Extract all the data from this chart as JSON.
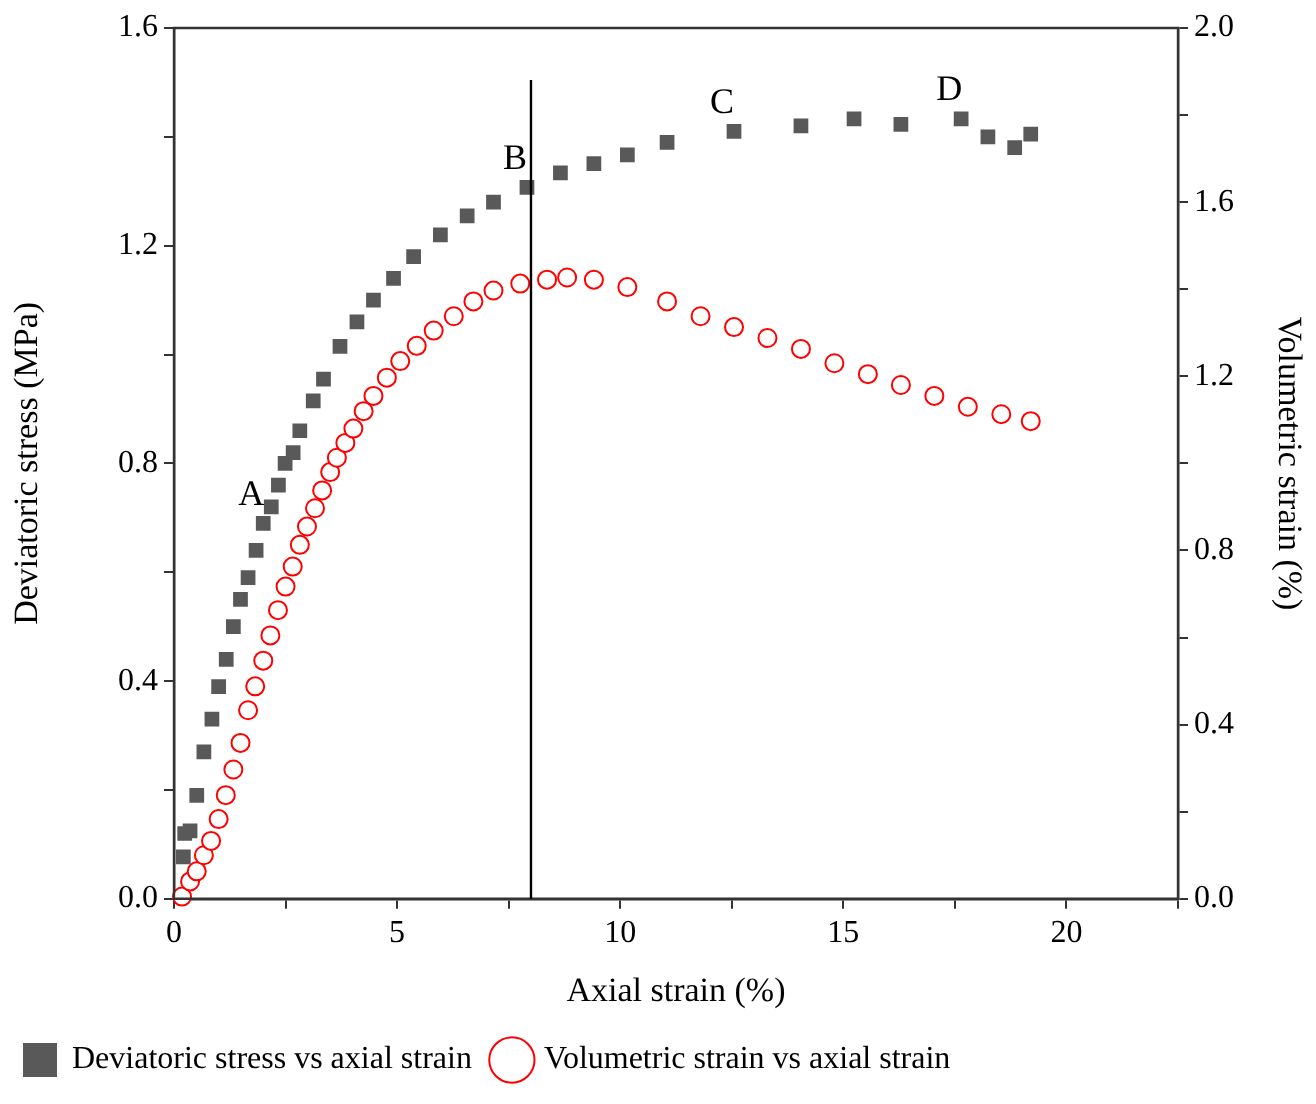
{
  "chart_data": {
    "type": "scatter",
    "xlabel": "Axial strain (%)",
    "ylabel": "Deviatoric stress (MPa)",
    "y2label": "Volumetric strain (%)",
    "xlim": [
      0,
      22.5
    ],
    "xticks": [
      0,
      {
        "value": 2.5,
        "label": null
      },
      5,
      {
        "value": 7.5,
        "label": null
      },
      10,
      {
        "value": 12.5,
        "label": null
      },
      15,
      {
        "value": 17.5,
        "label": null
      },
      20,
      {
        "value": 22.5,
        "label": null
      }
    ],
    "ylim": [
      0,
      1.6
    ],
    "yticks": [
      "0.0",
      {
        "value": 0.2,
        "label": null
      },
      0.4,
      {
        "value": 0.6,
        "label": null
      },
      0.8,
      {
        "value": 1.0,
        "label": null
      },
      1.2,
      {
        "value": 1.4,
        "label": null
      },
      1.6
    ],
    "y2lim": [
      0,
      2.0
    ],
    "y2ticks": [
      {
        "value": 0,
        "label": "0.0"
      },
      {
        "value": 0.2,
        "label": null
      },
      0.4,
      {
        "value": 0.6,
        "label": null
      },
      0.8,
      {
        "value": 1.0,
        "label": null
      },
      1.2,
      {
        "value": 1.4,
        "label": null
      },
      1.6,
      {
        "value": 1.8,
        "label": null
      },
      {
        "value": 2.0,
        "label": "2.0"
      }
    ],
    "legend": "bottom",
    "grid": false,
    "ref_lines": [
      {
        "axis": "x",
        "value": 8,
        "color": "#000000"
      }
    ],
    "annotations": [
      {
        "text": "A",
        "x": 2.0,
        "y": 0.69
      },
      {
        "text": "B",
        "x": 7.91,
        "y": 1.307
      },
      {
        "text": "C",
        "x": 12.55,
        "y": 1.41
      },
      {
        "text": "D",
        "x": 17.64,
        "y": 1.433
      }
    ],
    "series": [
      {
        "name": "Deviatoric stress vs axial strain",
        "color": "#595959",
        "marker": "square",
        "x": [
          0.21,
          0.24,
          0.36,
          0.51,
          0.67,
          0.85,
          1.0,
          1.17,
          1.33,
          1.49,
          1.66,
          1.84,
          2.0,
          2.18,
          2.34,
          2.49,
          2.67,
          2.82,
          3.12,
          3.35,
          3.72,
          4.1,
          4.47,
          4.92,
          5.37,
          5.97,
          6.57,
          7.16,
          7.91,
          8.66,
          9.41,
          10.16,
          11.05,
          12.55,
          14.05,
          15.24,
          16.29,
          17.64,
          18.24,
          18.84,
          19.2
        ],
        "values": [
          0.077,
          0.12,
          0.125,
          0.19,
          0.27,
          0.33,
          0.39,
          0.44,
          0.5,
          0.55,
          0.59,
          0.64,
          0.69,
          0.72,
          0.76,
          0.8,
          0.82,
          0.86,
          0.915,
          0.955,
          1.015,
          1.06,
          1.1,
          1.14,
          1.18,
          1.22,
          1.255,
          1.28,
          1.307,
          1.334,
          1.351,
          1.367,
          1.39,
          1.41,
          1.42,
          1.433,
          1.423,
          1.433,
          1.4,
          1.38,
          1.405
        ]
      },
      {
        "name": "Volumetric strain vs axial strain",
        "color": "#ff0000",
        "marker": "circle",
        "axis": "y2",
        "x": [
          0.18,
          0.36,
          0.51,
          0.67,
          0.83,
          1.0,
          1.16,
          1.33,
          1.49,
          1.66,
          1.82,
          2.0,
          2.16,
          2.33,
          2.5,
          2.66,
          2.82,
          2.98,
          3.16,
          3.32,
          3.5,
          3.65,
          3.84,
          4.02,
          4.25,
          4.47,
          4.77,
          5.07,
          5.44,
          5.82,
          6.27,
          6.71,
          7.16,
          7.76,
          8.36,
          8.81,
          9.41,
          10.16,
          11.05,
          11.8,
          12.55,
          13.3,
          14.05,
          14.8,
          15.55,
          16.29,
          17.04,
          17.79,
          18.54,
          19.2
        ],
        "values": [
          0.005,
          0.04,
          0.063,
          0.1,
          0.133,
          0.183,
          0.238,
          0.297,
          0.358,
          0.433,
          0.488,
          0.547,
          0.605,
          0.663,
          0.717,
          0.763,
          0.813,
          0.855,
          0.897,
          0.938,
          0.98,
          1.013,
          1.047,
          1.08,
          1.12,
          1.155,
          1.197,
          1.235,
          1.27,
          1.305,
          1.338,
          1.372,
          1.397,
          1.413,
          1.422,
          1.427,
          1.422,
          1.405,
          1.372,
          1.338,
          1.313,
          1.288,
          1.263,
          1.23,
          1.205,
          1.18,
          1.155,
          1.13,
          1.113,
          1.097
        ]
      }
    ]
  }
}
